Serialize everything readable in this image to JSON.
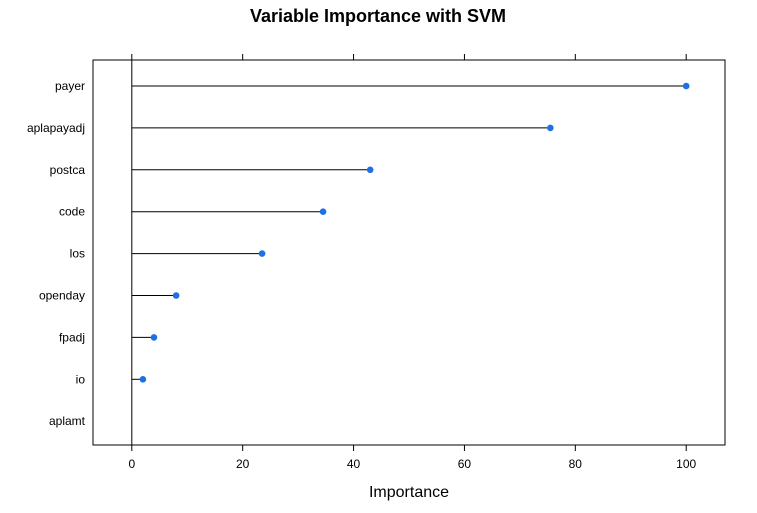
{
  "chart_data": {
    "type": "dotplot",
    "title": "Variable Importance with SVM",
    "xlabel": "Importance",
    "ylabel": "",
    "xlim": [
      -7,
      107
    ],
    "xticks": [
      0,
      20,
      40,
      60,
      80,
      100
    ],
    "grid": false,
    "legend": "none",
    "series_color": "#1f6fe6",
    "categories": [
      "payer",
      "aplapayadj",
      "postca",
      "code",
      "los",
      "openday",
      "fpadj",
      "io",
      "aplamt"
    ],
    "values": [
      100,
      75.5,
      43,
      34.5,
      23.5,
      8,
      4,
      2,
      0
    ]
  }
}
